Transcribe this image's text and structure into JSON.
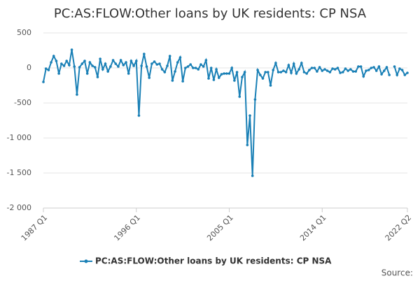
{
  "chart_data": {
    "type": "line",
    "title": "PC:AS:FLOW:Other loans by UK residents: CP NSA",
    "source": "Source:",
    "categories": [
      "1987 Q1",
      null,
      null,
      null,
      null,
      null,
      null,
      null,
      null,
      null,
      null,
      null,
      null,
      null,
      null,
      null,
      null,
      null,
      null,
      null,
      null,
      null,
      null,
      null,
      null,
      null,
      null,
      null,
      null,
      null,
      null,
      null,
      null,
      null,
      null,
      null,
      "1996 Q1",
      null,
      null,
      null,
      null,
      null,
      null,
      null,
      null,
      null,
      null,
      null,
      null,
      null,
      null,
      null,
      null,
      null,
      null,
      null,
      null,
      null,
      null,
      null,
      null,
      null,
      null,
      null,
      null,
      null,
      null,
      null,
      null,
      null,
      null,
      null,
      "2005 Q1",
      null,
      null,
      null,
      null,
      null,
      null,
      null,
      null,
      null,
      null,
      null,
      null,
      null,
      null,
      null,
      null,
      null,
      null,
      null,
      null,
      null,
      null,
      null,
      null,
      null,
      null,
      null,
      null,
      null,
      null,
      null,
      null,
      null,
      null,
      null,
      "2014 Q1",
      null,
      null,
      null,
      null,
      null,
      null,
      null,
      null,
      null,
      null,
      null,
      null,
      null,
      null,
      null,
      null,
      null,
      null,
      null,
      null,
      null,
      null,
      null,
      null,
      null,
      null,
      null,
      null,
      null,
      null,
      null,
      null,
      "2022 Q2"
    ],
    "series": [
      {
        "name": "PC:AS:FLOW:Other loans by UK residents: CP NSA",
        "color": "#1a80b6",
        "values": [
          -200,
          -10,
          -30,
          80,
          170,
          100,
          -80,
          60,
          30,
          100,
          40,
          260,
          20,
          -380,
          10,
          60,
          100,
          -80,
          80,
          30,
          10,
          -130,
          130,
          -20,
          60,
          -50,
          20,
          110,
          60,
          20,
          110,
          40,
          80,
          -80,
          100,
          30,
          100,
          -680,
          30,
          200,
          20,
          -140,
          60,
          90,
          50,
          60,
          -20,
          -60,
          30,
          170,
          -180,
          -50,
          80,
          150,
          -190,
          0,
          20,
          50,
          0,
          0,
          -20,
          50,
          20,
          110,
          -150,
          0,
          -170,
          -20,
          -140,
          -90,
          -80,
          -80,
          -80,
          0,
          -180,
          -60,
          -410,
          -130,
          -60,
          -1100,
          -680,
          -1540,
          -450,
          -30,
          -100,
          -150,
          -60,
          -60,
          -250,
          -30,
          70,
          -60,
          -60,
          -40,
          -60,
          40,
          -70,
          60,
          -80,
          -20,
          70,
          -60,
          -80,
          -30,
          0,
          0,
          -50,
          10,
          -40,
          -20,
          -40,
          -60,
          -10,
          -20,
          0,
          -70,
          -60,
          -10,
          -40,
          -20,
          -50,
          -50,
          20,
          20,
          -120,
          -40,
          -30,
          0,
          10,
          -40,
          20,
          -90,
          -40,
          10,
          -100,
          null,
          20,
          -100,
          -10,
          -30,
          -100,
          -70
        ]
      }
    ],
    "ylim": [
      -2000,
      500
    ],
    "yticks": [
      {
        "value": -2000,
        "label": "-2 000"
      },
      {
        "value": -1500,
        "label": "-1 500"
      },
      {
        "value": -1000,
        "label": "-1 000"
      },
      -500,
      0,
      500
    ],
    "grid": true
  }
}
